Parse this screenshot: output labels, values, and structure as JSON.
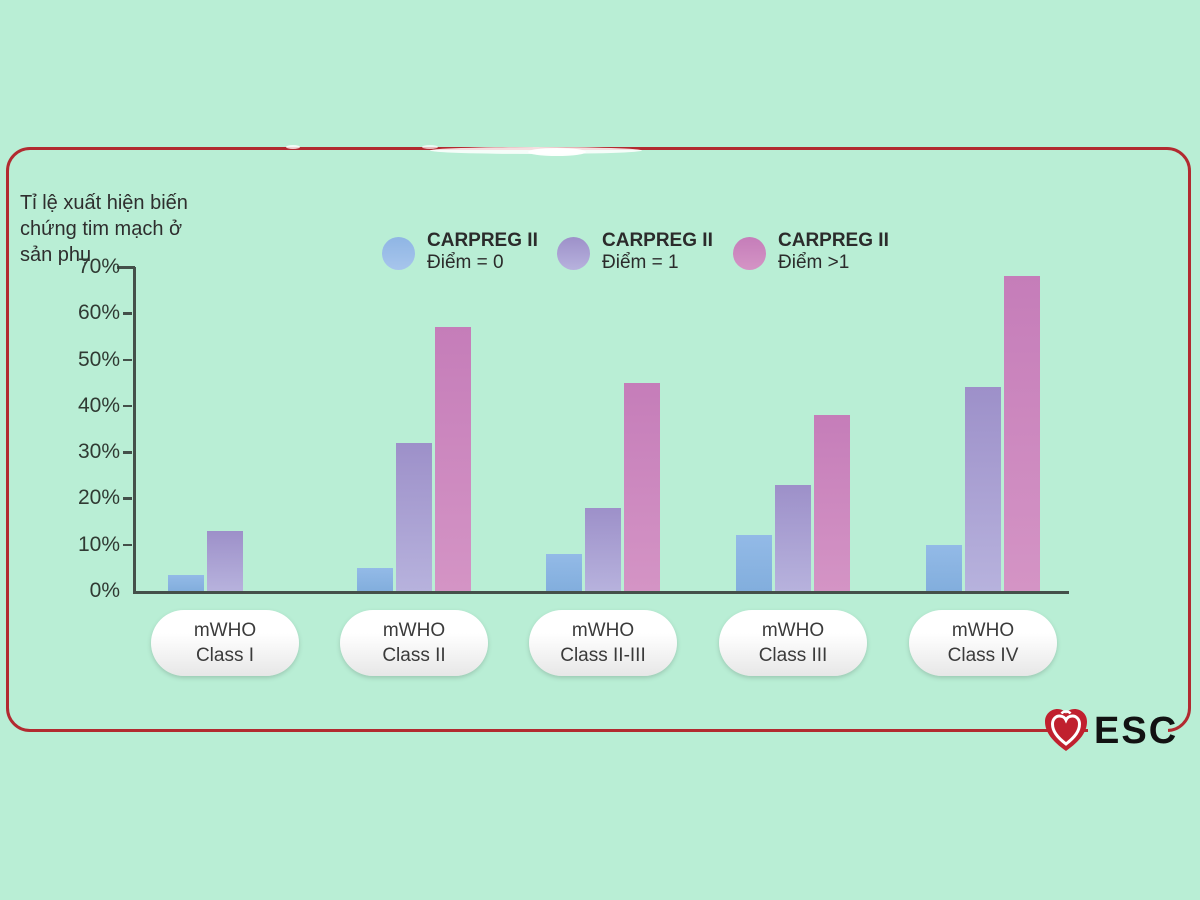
{
  "frame": {
    "border_color": "#b22a30",
    "background_color": "#b9eed5"
  },
  "title": {
    "lines": [
      "Tỉ lệ xuất hiện biến",
      "chứng tim mạch ở",
      "sản phụ"
    ]
  },
  "legend": {
    "items": [
      {
        "name": "CARPREG II",
        "score": "Điểm = 0",
        "color_top": "#8fb5e4",
        "color_bottom": "#a7c5ec"
      },
      {
        "name": "CARPREG II",
        "score": "Điểm = 1",
        "color_top": "#9d90c9",
        "color_bottom": "#b7b2dd"
      },
      {
        "name": "CARPREG II",
        "score": "Điểm >1",
        "color_top": "#c57db9",
        "color_bottom": "#d494c5"
      }
    ]
  },
  "chart_data": {
    "type": "bar",
    "title": "Tỉ lệ xuất hiện biến chứng tim mạch ở sản phụ",
    "categories": [
      "mWHO Class I",
      "mWHO Class II",
      "mWHO Class II-III",
      "mWHO Class III",
      "mWHO Class IV"
    ],
    "category_lines": [
      [
        "mWHO",
        "Class I"
      ],
      [
        "mWHO",
        "Class II"
      ],
      [
        "mWHO",
        "Class II-III"
      ],
      [
        "mWHO",
        "Class III"
      ],
      [
        "mWHO",
        "Class IV"
      ]
    ],
    "series": [
      {
        "name": "CARPREG II Điểm = 0",
        "values": [
          3.5,
          5,
          8,
          12,
          10
        ],
        "color_top": "#93bae7",
        "color_bottom": "#82aedd"
      },
      {
        "name": "CARPREG II Điểm = 1",
        "values": [
          13,
          32,
          18,
          23,
          44
        ],
        "color_top": "#9d90c9",
        "color_bottom": "#b7b2dd"
      },
      {
        "name": "CARPREG II Điểm >1",
        "values": [
          null,
          57,
          45,
          38,
          68
        ],
        "color_top": "#c57db9",
        "color_bottom": "#d494c5"
      }
    ],
    "ylim": [
      0,
      70
    ],
    "yticks": [
      "0%",
      "10%",
      "20%",
      "30%",
      "40%",
      "50%",
      "60%",
      "70%"
    ],
    "grid": false,
    "legend_position": "top"
  },
  "footer": {
    "esc_label": "ESC"
  }
}
